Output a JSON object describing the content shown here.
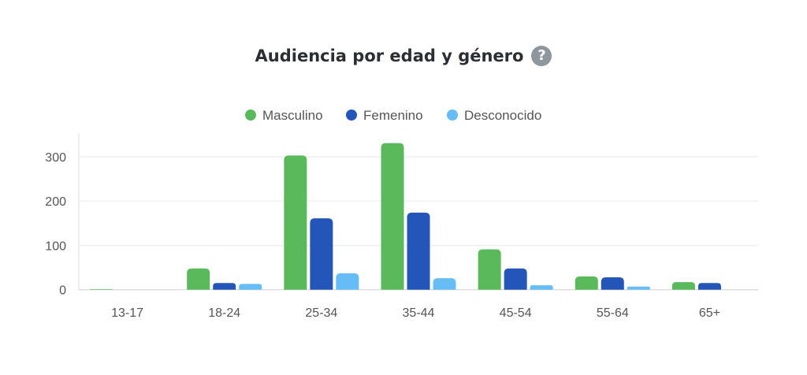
{
  "chart_data": {
    "type": "bar",
    "title": "Audiencia por edad y género",
    "help_icon": "question-circle-icon",
    "categories": [
      "13-17",
      "18-24",
      "25-34",
      "35-44",
      "45-54",
      "55-64",
      "65+"
    ],
    "series": [
      {
        "name": "Masculino",
        "color": "#59b95b",
        "values": [
          1,
          48,
          303,
          331,
          91,
          30,
          17
        ]
      },
      {
        "name": "Femenino",
        "color": "#2456b9",
        "values": [
          0,
          15,
          161,
          174,
          48,
          28,
          15
        ]
      },
      {
        "name": "Desconocido",
        "color": "#66bdf5",
        "values": [
          0,
          13,
          37,
          26,
          10,
          7,
          0
        ]
      }
    ],
    "yticks": [
      0,
      100,
      200,
      300
    ],
    "ylim": [
      0,
      340
    ],
    "xlabel": "",
    "ylabel": "",
    "grid": true,
    "legend": "top-center"
  }
}
